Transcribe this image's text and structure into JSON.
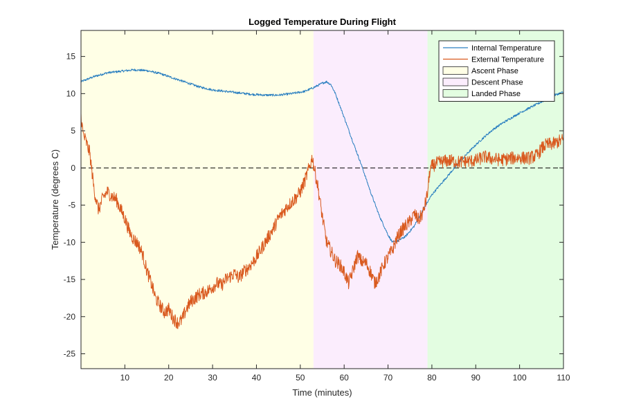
{
  "chart_data": {
    "type": "line",
    "title": "Logged Temperature During Flight",
    "xlabel": "Time (minutes)",
    "ylabel": "Temperature (degrees C)",
    "xlim": [
      0,
      110
    ],
    "ylim": [
      -27,
      18.5
    ],
    "xticks": [
      10,
      20,
      30,
      40,
      50,
      60,
      70,
      80,
      90,
      100,
      110
    ],
    "yticks": [
      -25,
      -20,
      -15,
      -10,
      -5,
      0,
      5,
      10,
      15
    ],
    "reference_line": {
      "y": 0,
      "style": "dashed",
      "color": "#000000"
    },
    "grid": false,
    "legend_position": "top-right",
    "phases": [
      {
        "name": "Ascent Phase",
        "x_start": 0,
        "x_end": 53,
        "color": "#ffffe6"
      },
      {
        "name": "Descent Phase",
        "x_start": 53,
        "x_end": 79,
        "color": "#fbedfd"
      },
      {
        "name": "Landed Phase",
        "x_start": 79,
        "x_end": 110,
        "color": "#e3fde1"
      }
    ],
    "series": [
      {
        "name": "Internal Temperature",
        "color": "#2a7fc0",
        "noise": 0.15,
        "points": [
          [
            0,
            11.6
          ],
          [
            3,
            12.3
          ],
          [
            6,
            12.8
          ],
          [
            9,
            13.0
          ],
          [
            12,
            13.2
          ],
          [
            15,
            13.1
          ],
          [
            18,
            12.7
          ],
          [
            21,
            12.1
          ],
          [
            24,
            11.5
          ],
          [
            27,
            10.9
          ],
          [
            30,
            10.5
          ],
          [
            33,
            10.3
          ],
          [
            36,
            10.1
          ],
          [
            39,
            9.9
          ],
          [
            42,
            9.8
          ],
          [
            45,
            9.8
          ],
          [
            48,
            10.0
          ],
          [
            51,
            10.3
          ],
          [
            53,
            10.8
          ],
          [
            55,
            11.4
          ],
          [
            56,
            11.6
          ],
          [
            57,
            11.2
          ],
          [
            58,
            10.0
          ],
          [
            60,
            6.8
          ],
          [
            62,
            3.5
          ],
          [
            64,
            0.3
          ],
          [
            66,
            -3.2
          ],
          [
            68,
            -6.4
          ],
          [
            70,
            -9.0
          ],
          [
            71,
            -10.0
          ],
          [
            72,
            -9.9
          ],
          [
            74,
            -9.2
          ],
          [
            76,
            -7.8
          ],
          [
            78,
            -5.6
          ],
          [
            80,
            -3.6
          ],
          [
            82,
            -2.2
          ],
          [
            84,
            -0.8
          ],
          [
            86,
            0.6
          ],
          [
            88,
            1.9
          ],
          [
            90,
            3.1
          ],
          [
            92,
            4.2
          ],
          [
            94,
            5.2
          ],
          [
            96,
            6.0
          ],
          [
            98,
            6.7
          ],
          [
            100,
            7.4
          ],
          [
            102,
            8.0
          ],
          [
            104,
            8.6
          ],
          [
            106,
            9.2
          ],
          [
            108,
            9.8
          ],
          [
            110,
            10.2
          ]
        ]
      },
      {
        "name": "External Temperature",
        "color": "#d9591e",
        "noise": 0.9,
        "points": [
          [
            0,
            7.0
          ],
          [
            0.5,
            4.5
          ],
          [
            1,
            3.8
          ],
          [
            2,
            2.0
          ],
          [
            3,
            -3.0
          ],
          [
            4,
            -5.7
          ],
          [
            5,
            -4.0
          ],
          [
            6,
            -3.2
          ],
          [
            7,
            -3.8
          ],
          [
            8,
            -4.2
          ],
          [
            9,
            -5.5
          ],
          [
            10,
            -6.8
          ],
          [
            11,
            -8.5
          ],
          [
            12,
            -9.6
          ],
          [
            13,
            -10.2
          ],
          [
            14,
            -11.5
          ],
          [
            15,
            -13.8
          ],
          [
            16,
            -15.5
          ],
          [
            17,
            -17.5
          ],
          [
            18,
            -18.5
          ],
          [
            19,
            -19.4
          ],
          [
            20,
            -19.0
          ],
          [
            21,
            -20.2
          ],
          [
            22,
            -20.8
          ],
          [
            23,
            -20.5
          ],
          [
            24,
            -19.0
          ],
          [
            25,
            -18.0
          ],
          [
            26,
            -17.5
          ],
          [
            27,
            -17.0
          ],
          [
            28,
            -16.8
          ],
          [
            29,
            -16.5
          ],
          [
            30,
            -16.0
          ],
          [
            31,
            -15.5
          ],
          [
            32,
            -15.8
          ],
          [
            33,
            -15.0
          ],
          [
            34,
            -14.6
          ],
          [
            35,
            -14.2
          ],
          [
            36,
            -14.8
          ],
          [
            37,
            -14.0
          ],
          [
            38,
            -13.5
          ],
          [
            39,
            -12.8
          ],
          [
            40,
            -12.0
          ],
          [
            41,
            -11.0
          ],
          [
            42,
            -10.0
          ],
          [
            43,
            -9.0
          ],
          [
            44,
            -8.0
          ],
          [
            45,
            -6.8
          ],
          [
            46,
            -6.0
          ],
          [
            47,
            -5.2
          ],
          [
            48,
            -4.6
          ],
          [
            49,
            -4.0
          ],
          [
            50,
            -3.2
          ],
          [
            51,
            -1.8
          ],
          [
            52,
            0.0
          ],
          [
            52.8,
            1.5
          ],
          [
            53,
            0.5
          ],
          [
            54,
            -2.5
          ],
          [
            55,
            -6.5
          ],
          [
            56,
            -10.0
          ],
          [
            57,
            -11.2
          ],
          [
            58,
            -12.5
          ],
          [
            59,
            -13.0
          ],
          [
            60,
            -14.0
          ],
          [
            61,
            -15.5
          ],
          [
            62,
            -13.8
          ],
          [
            63,
            -11.8
          ],
          [
            64,
            -12.6
          ],
          [
            65,
            -12.8
          ],
          [
            66,
            -14.0
          ],
          [
            67,
            -15.5
          ],
          [
            68,
            -14.5
          ],
          [
            69,
            -13.0
          ],
          [
            70,
            -12.0
          ],
          [
            71,
            -11.0
          ],
          [
            72,
            -9.5
          ],
          [
            73,
            -8.5
          ],
          [
            74,
            -7.8
          ],
          [
            75,
            -7.2
          ],
          [
            76,
            -6.2
          ],
          [
            77,
            -7.0
          ],
          [
            78,
            -6.0
          ],
          [
            79,
            -3.5
          ],
          [
            79.5,
            -0.5
          ],
          [
            80,
            0.2
          ],
          [
            81,
            0.6
          ],
          [
            82,
            0.8
          ],
          [
            83,
            0.9
          ],
          [
            84,
            1.0
          ],
          [
            86,
            0.8
          ],
          [
            88,
            0.9
          ],
          [
            90,
            1.0
          ],
          [
            92,
            1.5
          ],
          [
            94,
            1.2
          ],
          [
            96,
            1.1
          ],
          [
            98,
            1.3
          ],
          [
            100,
            1.4
          ],
          [
            102,
            1.3
          ],
          [
            104,
            1.7
          ],
          [
            105,
            2.6
          ],
          [
            106,
            3.1
          ],
          [
            108,
            3.3
          ],
          [
            109,
            3.6
          ],
          [
            110,
            3.8
          ]
        ]
      }
    ]
  }
}
